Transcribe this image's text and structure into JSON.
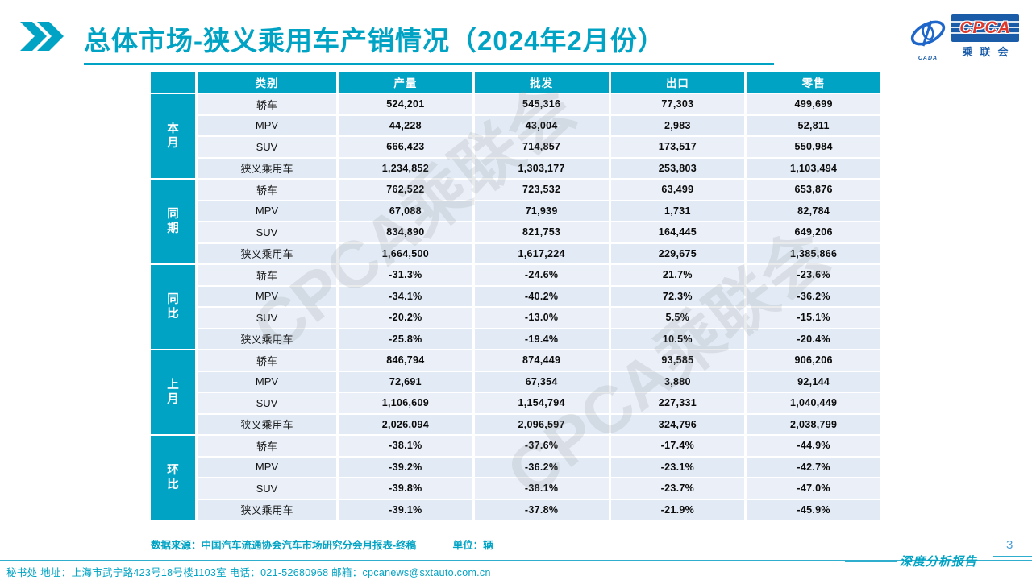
{
  "page": {
    "title": "总体市场-狭义乘用车产销情况（2024年2月份）",
    "page_number": "3",
    "tagline": "深度分析报告",
    "footer_info": "秘书处   地址：上海市武宁路423号18号楼1103室   电话：021-52680968   邮箱：cpcanews@sxtauto.com.cn",
    "source_label": "数据来源：中国汽车流通协会汽车市场研究分会月报表-终稿",
    "unit_label": "单位：辆",
    "watermark": "CPCA乘联会"
  },
  "logo": {
    "cada": "CADA",
    "cpca": "CPCA",
    "cpca_cn": "乘联会"
  },
  "colors": {
    "teal": "#00A3C4",
    "logo_blue": "#1A5CA8",
    "logo_red": "#E0392B",
    "row_light": "#EBF0F8",
    "row_dark": "#E2EBF5"
  },
  "table": {
    "headers": [
      "类别",
      "产量",
      "批发",
      "出口",
      "零售"
    ],
    "groups": [
      {
        "label": "本月",
        "rows": [
          {
            "category": "轿车",
            "values": [
              "524,201",
              "545,316",
              "77,303",
              "499,699"
            ]
          },
          {
            "category": "MPV",
            "values": [
              "44,228",
              "43,004",
              "2,983",
              "52,811"
            ]
          },
          {
            "category": "SUV",
            "values": [
              "666,423",
              "714,857",
              "173,517",
              "550,984"
            ]
          },
          {
            "category": "狭义乘用车",
            "values": [
              "1,234,852",
              "1,303,177",
              "253,803",
              "1,103,494"
            ]
          }
        ]
      },
      {
        "label": "同期",
        "rows": [
          {
            "category": "轿车",
            "values": [
              "762,522",
              "723,532",
              "63,499",
              "653,876"
            ]
          },
          {
            "category": "MPV",
            "values": [
              "67,088",
              "71,939",
              "1,731",
              "82,784"
            ]
          },
          {
            "category": "SUV",
            "values": [
              "834,890",
              "821,753",
              "164,445",
              "649,206"
            ]
          },
          {
            "category": "狭义乘用车",
            "values": [
              "1,664,500",
              "1,617,224",
              "229,675",
              "1,385,866"
            ]
          }
        ]
      },
      {
        "label": "同比",
        "rows": [
          {
            "category": "轿车",
            "values": [
              "-31.3%",
              "-24.6%",
              "21.7%",
              "-23.6%"
            ]
          },
          {
            "category": "MPV",
            "values": [
              "-34.1%",
              "-40.2%",
              "72.3%",
              "-36.2%"
            ]
          },
          {
            "category": "SUV",
            "values": [
              "-20.2%",
              "-13.0%",
              "5.5%",
              "-15.1%"
            ]
          },
          {
            "category": "狭义乘用车",
            "values": [
              "-25.8%",
              "-19.4%",
              "10.5%",
              "-20.4%"
            ]
          }
        ]
      },
      {
        "label": "上月",
        "rows": [
          {
            "category": "轿车",
            "values": [
              "846,794",
              "874,449",
              "93,585",
              "906,206"
            ]
          },
          {
            "category": "MPV",
            "values": [
              "72,691",
              "67,354",
              "3,880",
              "92,144"
            ]
          },
          {
            "category": "SUV",
            "values": [
              "1,106,609",
              "1,154,794",
              "227,331",
              "1,040,449"
            ]
          },
          {
            "category": "狭义乘用车",
            "values": [
              "2,026,094",
              "2,096,597",
              "324,796",
              "2,038,799"
            ]
          }
        ]
      },
      {
        "label": "环比",
        "rows": [
          {
            "category": "轿车",
            "values": [
              "-38.1%",
              "-37.6%",
              "-17.4%",
              "-44.9%"
            ]
          },
          {
            "category": "MPV",
            "values": [
              "-39.2%",
              "-36.2%",
              "-23.1%",
              "-42.7%"
            ]
          },
          {
            "category": "SUV",
            "values": [
              "-39.8%",
              "-38.1%",
              "-23.7%",
              "-47.0%"
            ]
          },
          {
            "category": "狭义乘用车",
            "values": [
              "-39.1%",
              "-37.8%",
              "-21.9%",
              "-45.9%"
            ]
          }
        ]
      }
    ]
  }
}
